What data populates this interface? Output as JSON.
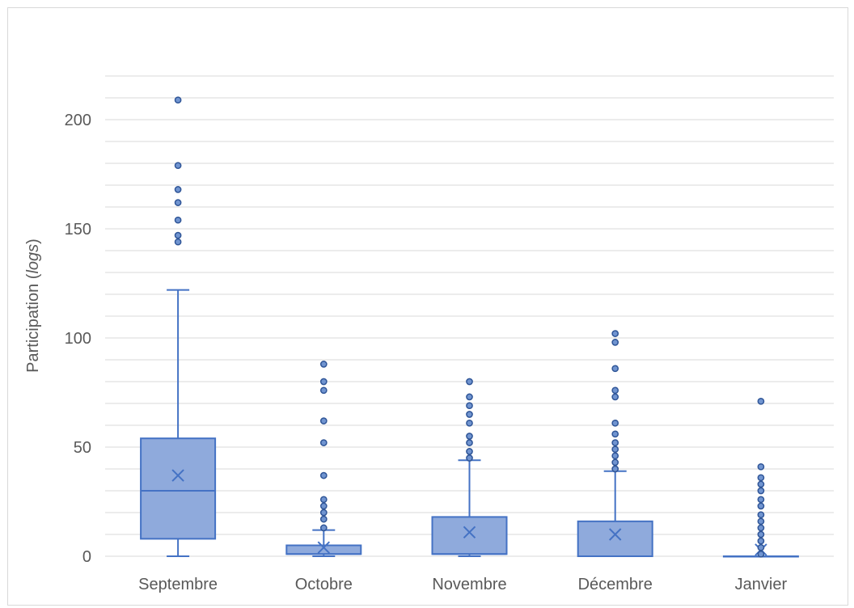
{
  "chart_data": {
    "type": "boxplot",
    "title": "",
    "xlabel": "",
    "ylabel": {
      "prefix": "Participation (",
      "italic": "logs",
      "suffix": ")"
    },
    "ylim": [
      0,
      225
    ],
    "y_ticks": [
      0,
      50,
      100,
      150,
      200
    ],
    "minor_grid_step": 10,
    "grid": true,
    "legend": "none",
    "colors": {
      "box_fill": "#8FAADC",
      "box_stroke": "#4472C4",
      "outlier_fill": "#7094D0",
      "outlier_stroke": "#2F5597",
      "grid": "#d9d9d9",
      "text": "#595959"
    },
    "categories": [
      "Septembre",
      "Octobre",
      "Novembre",
      "Décembre",
      "Janvier"
    ],
    "series": [
      {
        "category": "Septembre",
        "min": 0,
        "q1": 8,
        "median": 30,
        "q3": 54,
        "max": 122,
        "mean": 37,
        "outliers": [
          209,
          179,
          168,
          162,
          154,
          147,
          144
        ]
      },
      {
        "category": "Octobre",
        "min": 0,
        "q1": 1,
        "median": 1,
        "q3": 5,
        "max": 12,
        "mean": 4,
        "outliers": [
          88,
          80,
          76,
          62,
          52,
          37,
          26,
          23,
          20,
          17,
          13
        ]
      },
      {
        "category": "Novembre",
        "min": 0,
        "q1": 1,
        "median": 1,
        "q3": 18,
        "max": 44,
        "mean": 11,
        "outliers": [
          80,
          73,
          69,
          65,
          61,
          55,
          52,
          48,
          45
        ]
      },
      {
        "category": "Décembre",
        "min": 0,
        "q1": 0,
        "median": 0,
        "q3": 16,
        "max": 39,
        "mean": 10,
        "outliers": [
          102,
          98,
          86,
          76,
          73,
          61,
          56,
          52,
          49,
          46,
          43,
          40
        ]
      },
      {
        "category": "Janvier",
        "min": 0,
        "q1": 0,
        "median": 0,
        "q3": 0,
        "max": 0,
        "mean": 3,
        "outliers": [
          71,
          41,
          36,
          33,
          30,
          26,
          23,
          19,
          16,
          13,
          10,
          7,
          4,
          1
        ]
      }
    ]
  }
}
